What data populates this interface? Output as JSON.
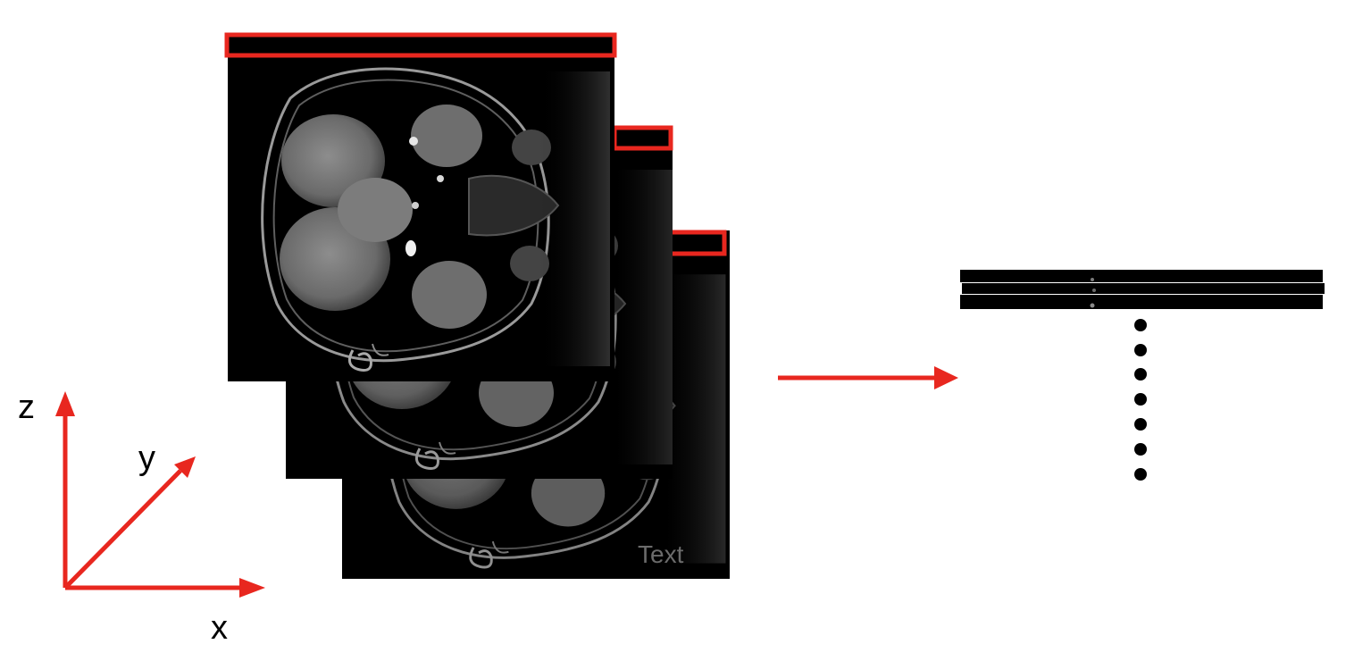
{
  "colors": {
    "accent": "#e8271f",
    "scan_background": "#000000",
    "dots": "#000000"
  },
  "axes": {
    "x_label": "x",
    "y_label": "y",
    "z_label": "z"
  },
  "slice_stack": {
    "count_visible": 3,
    "watermark_text": "Text",
    "watermark_color": "#6b6b6b"
  },
  "output": {
    "strip_count": 3,
    "continuation_dots": 7
  },
  "icons": {
    "transform_arrow": "right-arrow-icon",
    "continuation": "vertical-ellipsis-icon"
  }
}
